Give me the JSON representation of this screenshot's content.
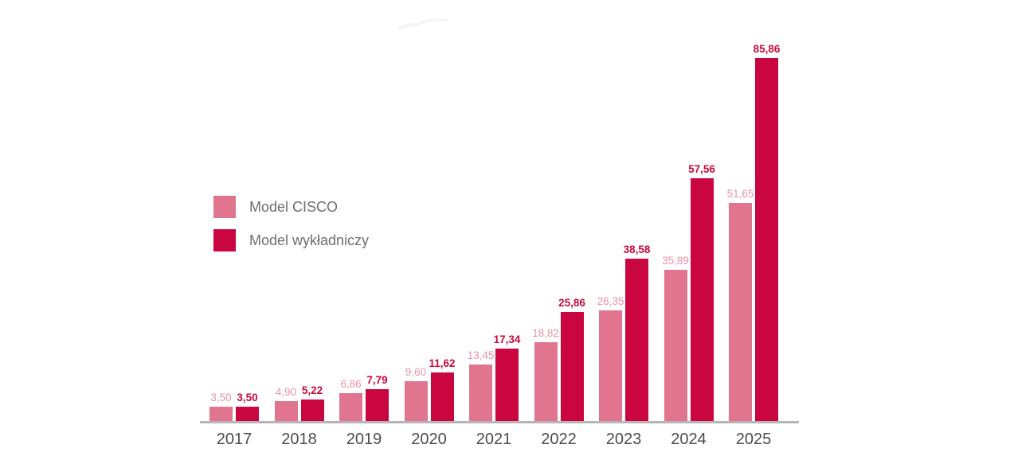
{
  "chart_data": {
    "type": "bar",
    "title": "",
    "categories": [
      "2017",
      "2018",
      "2019",
      "2020",
      "2021",
      "2022",
      "2023",
      "2024",
      "2025"
    ],
    "series": [
      {
        "name": "Model CISCO",
        "color": "#e1758f",
        "label_color": "#e794a6",
        "values": [
          3.5,
          4.9,
          6.86,
          9.6,
          13.45,
          18.82,
          26.35,
          35.89,
          51.65
        ],
        "value_labels": [
          "3,50",
          "4,90",
          "6,86",
          "9,60",
          "13,45",
          "18,82",
          "26,35",
          "35,89",
          "51,65"
        ]
      },
      {
        "name": "Model wykładniczy",
        "color": "#c9063f",
        "label_color": "#c50a3c",
        "values": [
          3.5,
          5.22,
          7.79,
          11.62,
          17.34,
          25.86,
          38.58,
          57.56,
          85.86
        ],
        "value_labels": [
          "3,50",
          "5,22",
          "7,79",
          "11,62",
          "17,34",
          "25,86",
          "38,58",
          "57,56",
          "85,86"
        ]
      }
    ],
    "xlabel": "",
    "ylabel": "",
    "ylim": [
      0,
      86
    ],
    "grid": false,
    "legend_position": "upper-left-inside",
    "decimal_separator": ",",
    "axis_color": "#b5b5b8",
    "category_label_color": "#4b4b52",
    "legend_text_color": "#6e6e6e"
  }
}
